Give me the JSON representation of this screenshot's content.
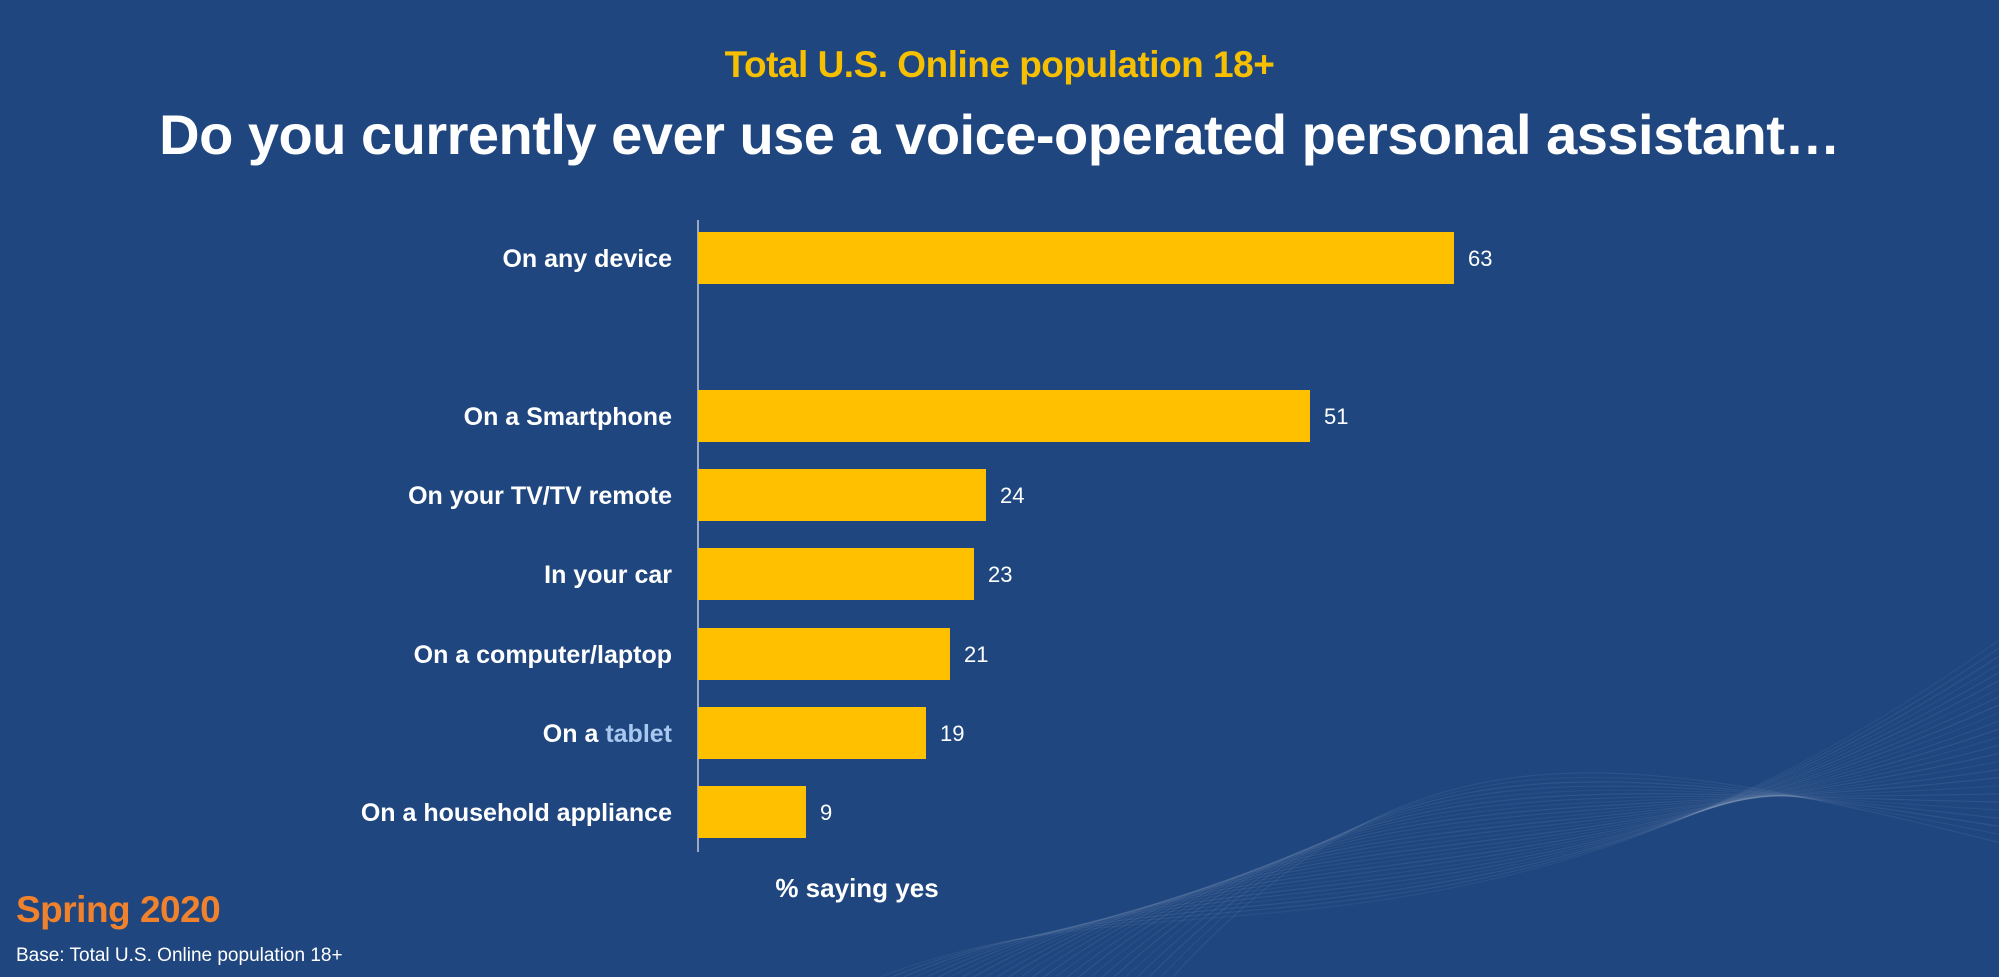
{
  "header": {
    "subtitle": "Total U.S. Online population 18+",
    "title": "Do you currently ever use a voice-operated personal assistant…"
  },
  "footer": {
    "season": "Spring 2020",
    "base_note": "Base: Total U.S. Online population 18+"
  },
  "colors": {
    "background": "#1f467f",
    "bar": "#ffc000",
    "subtitle": "#f6c000",
    "season": "#f0822d",
    "highlight": "#a9c8f0",
    "text": "#ffffff"
  },
  "chart_data": {
    "type": "bar",
    "orientation": "horizontal",
    "categories": [
      "On any device",
      "On a Smartphone",
      "On your TV/TV remote",
      "In your car",
      "On a computer/laptop",
      "On a tablet",
      "On a household appliance"
    ],
    "values": [
      63,
      51,
      24,
      23,
      21,
      19,
      9
    ],
    "data_labels": [
      "63",
      "51",
      "24",
      "23",
      "21",
      "19",
      "9"
    ],
    "xlabel": "% saying yes",
    "ylabel": "",
    "title": "Do you currently ever use a voice-operated personal assistant…",
    "subtitle": "Total U.S. Online population 18+",
    "xlim": [
      0,
      100
    ],
    "grid": false,
    "legend": "none",
    "highlighted_word": {
      "category_index": 5,
      "word": "tablet"
    }
  }
}
